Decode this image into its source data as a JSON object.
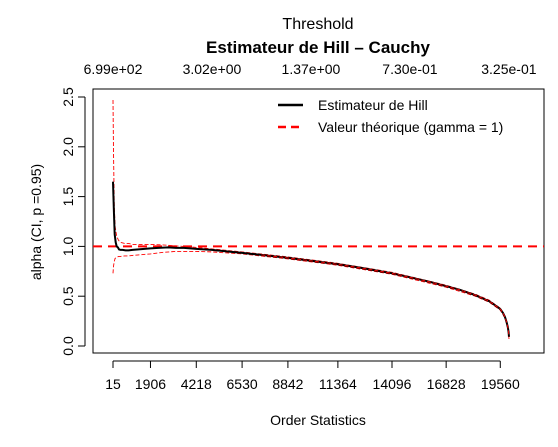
{
  "chart_data": {
    "type": "line",
    "title": "Estimateur de Hill – Cauchy",
    "top_axis_title": "Threshold",
    "top_tick_labels": [
      "6.99e+02",
      "3.02e+00",
      "1.37e+00",
      "7.30e-01",
      "3.25e-01"
    ],
    "top_tick_positions": [
      15,
      5010,
      10005,
      15000,
      19995
    ],
    "xlabel": "Order Statistics",
    "ylabel": "alpha (CI, p =0.95)",
    "x_ticks": [
      15,
      1906,
      4218,
      6530,
      8842,
      11364,
      14096,
      16828,
      19560
    ],
    "y_ticks": [
      0.0,
      0.5,
      1.0,
      1.5,
      2.0,
      2.5
    ],
    "y_tick_labels": [
      "0.0",
      "0.5",
      "1.0",
      "1.5",
      "2.0",
      "2.5"
    ],
    "xlim": [
      15,
      20000
    ],
    "ylim": [
      0.0,
      2.5
    ],
    "grid": false,
    "legend_position": "top-right",
    "reference_line": {
      "y": 1.0,
      "color": "#ff0000",
      "style": "dashed"
    },
    "series": [
      {
        "name": "Estimateur de Hill",
        "color": "#000000",
        "x": [
          15,
          60,
          100,
          150,
          200,
          260,
          320,
          400,
          500,
          650,
          800,
          1000,
          1300,
          1600,
          1906,
          2300,
          2800,
          3200,
          3600,
          4218,
          5000,
          6000,
          6530,
          7500,
          8842,
          10000,
          11364,
          12500,
          14096,
          15000,
          16000,
          16828,
          17500,
          18300,
          19000,
          19400,
          19560,
          19700,
          19800,
          19880,
          19940,
          19980,
          20000
        ],
        "y": [
          1.65,
          1.35,
          1.12,
          1.04,
          1.0,
          0.99,
          0.97,
          0.965,
          0.965,
          0.96,
          0.96,
          0.965,
          0.97,
          0.975,
          0.98,
          0.985,
          0.99,
          0.985,
          0.985,
          0.975,
          0.965,
          0.945,
          0.935,
          0.915,
          0.885,
          0.855,
          0.82,
          0.785,
          0.73,
          0.69,
          0.645,
          0.6,
          0.565,
          0.51,
          0.45,
          0.395,
          0.37,
          0.33,
          0.29,
          0.24,
          0.19,
          0.14,
          0.09
        ]
      },
      {
        "name": "CI upper",
        "color": "#ff0000",
        "x": [
          15,
          40,
          80,
          120,
          200,
          300,
          400,
          600,
          800,
          1000,
          1300,
          1906,
          2500,
          3200,
          4218,
          5000,
          6530,
          8842,
          11364,
          14096,
          16828,
          18300,
          19000,
          19560,
          19800,
          19940,
          20000
        ],
        "y": [
          2.47,
          1.95,
          1.4,
          1.2,
          1.1,
          1.06,
          1.04,
          1.03,
          1.03,
          1.02,
          1.02,
          1.02,
          1.015,
          1.005,
          0.99,
          0.975,
          0.945,
          0.895,
          0.83,
          0.74,
          0.61,
          0.52,
          0.46,
          0.38,
          0.3,
          0.2,
          0.12
        ]
      },
      {
        "name": "CI lower",
        "color": "#ff0000",
        "x": [
          15,
          40,
          80,
          120,
          200,
          300,
          400,
          600,
          800,
          1000,
          1300,
          1906,
          2500,
          3200,
          4218,
          5000,
          6530,
          8842,
          11364,
          14096,
          16828,
          18300,
          19000,
          19560,
          19800,
          19940,
          20000
        ],
        "y": [
          0.73,
          0.8,
          0.85,
          0.88,
          0.89,
          0.9,
          0.9,
          0.905,
          0.905,
          0.91,
          0.915,
          0.925,
          0.94,
          0.95,
          0.95,
          0.945,
          0.925,
          0.875,
          0.81,
          0.72,
          0.59,
          0.5,
          0.44,
          0.36,
          0.28,
          0.18,
          0.07
        ]
      }
    ],
    "legend": [
      {
        "label": "Estimateur de Hill",
        "color": "#000000",
        "style": "solid"
      },
      {
        "label": "Valeur théorique (gamma = 1)",
        "color": "#ff0000",
        "style": "dashed"
      }
    ]
  }
}
